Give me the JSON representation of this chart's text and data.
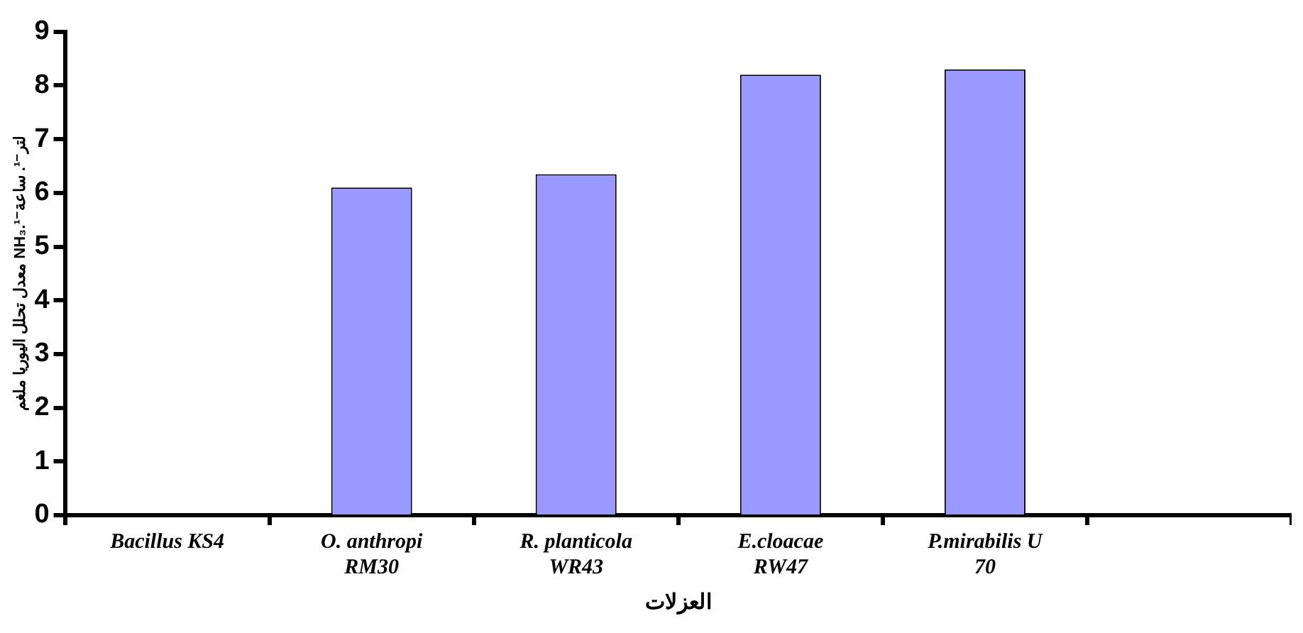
{
  "chart_data": {
    "type": "bar",
    "xlabel": "العزلات",
    "ylabel": "معدل تحلل اليوريا ملغم NH₃.لتر⁻¹. ساعة⁻¹",
    "categories": [
      "Bacillus KS4",
      "O. anthropi\nRM30",
      "R. planticola\nWR43",
      "E.cloacae\nRW47",
      "P.mirabilis U\n70",
      null
    ],
    "values": [
      0,
      6.1,
      6.35,
      8.2,
      8.3,
      null
    ],
    "color": "#9999ff",
    "ylim": [
      0,
      9
    ],
    "yticks": [
      0,
      1,
      2,
      3,
      4,
      5,
      6,
      7,
      8,
      9
    ],
    "grid": false,
    "legend": false
  }
}
